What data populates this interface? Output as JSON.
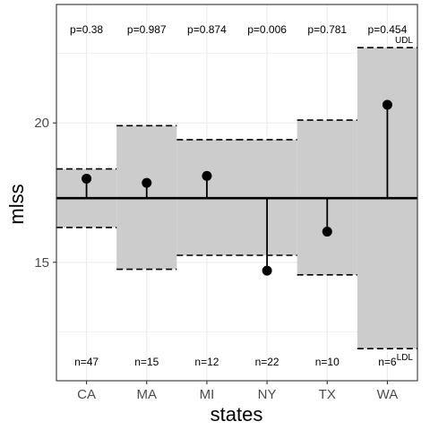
{
  "chart_data": {
    "type": "scatter",
    "title": "",
    "xlabel": "states",
    "ylabel": "mlss",
    "categories": [
      "CA",
      "MA",
      "MI",
      "NY",
      "TX",
      "WA"
    ],
    "values": [
      18.0,
      17.85,
      18.1,
      14.7,
      16.1,
      20.65
    ],
    "center_line": 17.3,
    "udl": [
      18.35,
      19.9,
      19.4,
      19.4,
      20.1,
      22.7
    ],
    "ldl": [
      16.25,
      14.75,
      15.25,
      15.25,
      14.55,
      11.9
    ],
    "p_values": [
      "p=0.38",
      "p=0.987",
      "p=0.874",
      "p=0.006",
      "p=0.781",
      "p=0.454"
    ],
    "n_labels": [
      "n=47",
      "n=15",
      "n=12",
      "n=22",
      "n=10",
      "n=6"
    ],
    "udl_label": "UDL",
    "ldl_label": "LDL",
    "yticks": [
      15,
      20
    ],
    "ylim": [
      10.75,
      24.25
    ],
    "grid": true,
    "legend": "none",
    "colors": {
      "band": "#cccccc",
      "line": "#000000",
      "grid": "#ebebeb",
      "border": "#333333"
    }
  }
}
